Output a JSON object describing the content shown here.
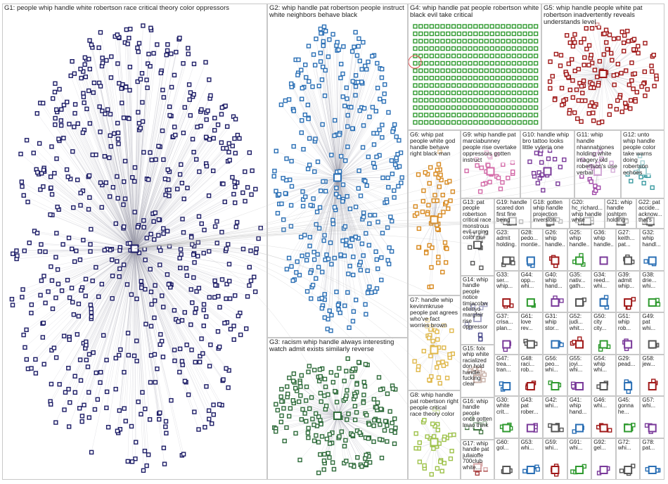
{
  "groups": [
    {
      "label": "G1: people whip handle white robertson race critical theory color oppressors",
      "color": "#1c1c66"
    },
    {
      "label": "G2: whip handle pat robertson people instruct white neighbors behave black",
      "color": "#2a6fb5"
    },
    {
      "label": "G3: racism whip handle always interesting watch admit exists similarly reverse",
      "color": "#2e6b3a"
    },
    {
      "label": "G4: whip handle pat people robertson white black evil take critical",
      "color": "#2f9a2f"
    },
    {
      "label": "G5: whip handle people white pat robertson inadvertently reveals understands level",
      "color": "#a01818"
    },
    {
      "label": "G6: whip pat people white god handle behave right black man",
      "color": "#d8891e"
    },
    {
      "label": "G7: handle whip kevinmkruse people pat agrees who've fact worries brown",
      "color": "#e0b84a"
    },
    {
      "label": "G8: whip handle pat robertson right people critical race theory color",
      "color": "#9ec24a"
    },
    {
      "label": "G9: whip handle pat marciabunney people rise overtake oppressors gotten instruct",
      "color": "#d46aa8"
    },
    {
      "label": "G10: handle whip bro tattoo looks little vyleria one",
      "color": "#7a3a9a"
    },
    {
      "label": "G11: whip handle nhannahjones holding white imagery old robertson's use verbal",
      "color": "#a048a8"
    },
    {
      "label": "G12: unto whip handle people color take warns doing robertson echoes",
      "color": "#3a9aa0"
    },
    {
      "label": "G13: pat people robertson critical race monstrous evil urging color rise",
      "color": "#555555"
    },
    {
      "label": "G14: whip handle people notice timjacobw ellenyo margfair rise oppressor",
      "color": "#444488"
    },
    {
      "label": "G15: folx whip white racialized don hold handle fucking clear",
      "color": "#885544"
    },
    {
      "label": "G16: whip handle people once gotten lmao think",
      "color": "#447744"
    },
    {
      "label": "G17: whip handle pat juliaioffe 700club white...",
      "color": "#aa4444"
    },
    {
      "label": "G19: handle scared don first fine being",
      "color": "#666666"
    },
    {
      "label": "G18: gotten whip handle projection inversion",
      "color": "#666666"
    },
    {
      "label": "G20: hc_richard... whip handle white",
      "color": "#666666"
    },
    {
      "label": "G21: whip handle joshtpm holding",
      "color": "#666666"
    },
    {
      "label": "G22: pat accide... acknow... that's",
      "color": "#666666"
    }
  ],
  "small_groups": [
    "G23: admit holding...",
    "G28: pedo... montie...",
    "G26: whip handle...",
    "G25: whip handle...",
    "G36: whip handle...",
    "G27: keith... pat...",
    "G32: whip handl...",
    "G33: ser... whip...",
    "G44: opp... whi...",
    "G40: whip hand...",
    "G35: nativ... gath...",
    "G34: reed... whi...",
    "G39: admit whip...",
    "G38: drie... whi...",
    "G37: crisa... plan...",
    "G61: love rev...",
    "G31: whip stor...",
    "G52: judi... whit...",
    "G50: city city...",
    "G51: whip rob...",
    "G49: pat whi...",
    "G47: trea... tran...",
    "G48: raci... rob...",
    "G56: peo... whi...",
    "G55: joyi... whi...",
    "G54: whip whi...",
    "G29: pead...",
    "G58: jew...",
    "G30: white crit...",
    "G43: pat rober...",
    "G42: whi...",
    "G41: whip hand...",
    "G46: whi...",
    "G45: gonna he...",
    "G57: whi...",
    "G60: gol...",
    "G53: whi...",
    "G59: whi...",
    "G91: whi...",
    "G92: gel...",
    "G72: whi...",
    "G78: pat..."
  ]
}
